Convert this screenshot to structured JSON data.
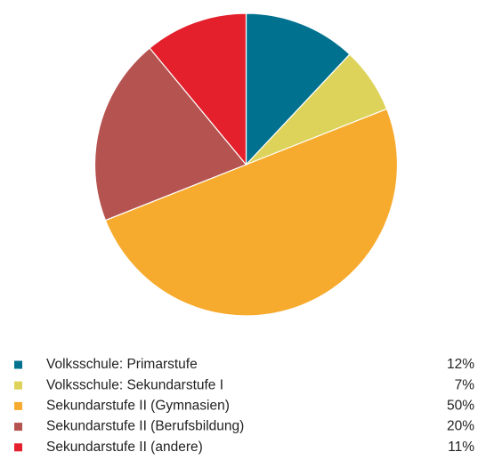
{
  "chart_data": {
    "type": "pie",
    "categories": [
      "Volksschule: Primarstufe",
      "Volksschule: Sekundarstufe I",
      "Sekundarstufe II (Gymnasien)",
      "Sekundarstufe II (Berufsbildung)",
      "Sekundarstufe II (andere)"
    ],
    "values": [
      12,
      7,
      50,
      20,
      11
    ],
    "value_labels": [
      "12%",
      "7%",
      "50%",
      "20%",
      "11%"
    ],
    "colors": [
      "#00718f",
      "#ddd35a",
      "#f7ab2e",
      "#b55350",
      "#e3202b"
    ],
    "legend": "bottom"
  }
}
